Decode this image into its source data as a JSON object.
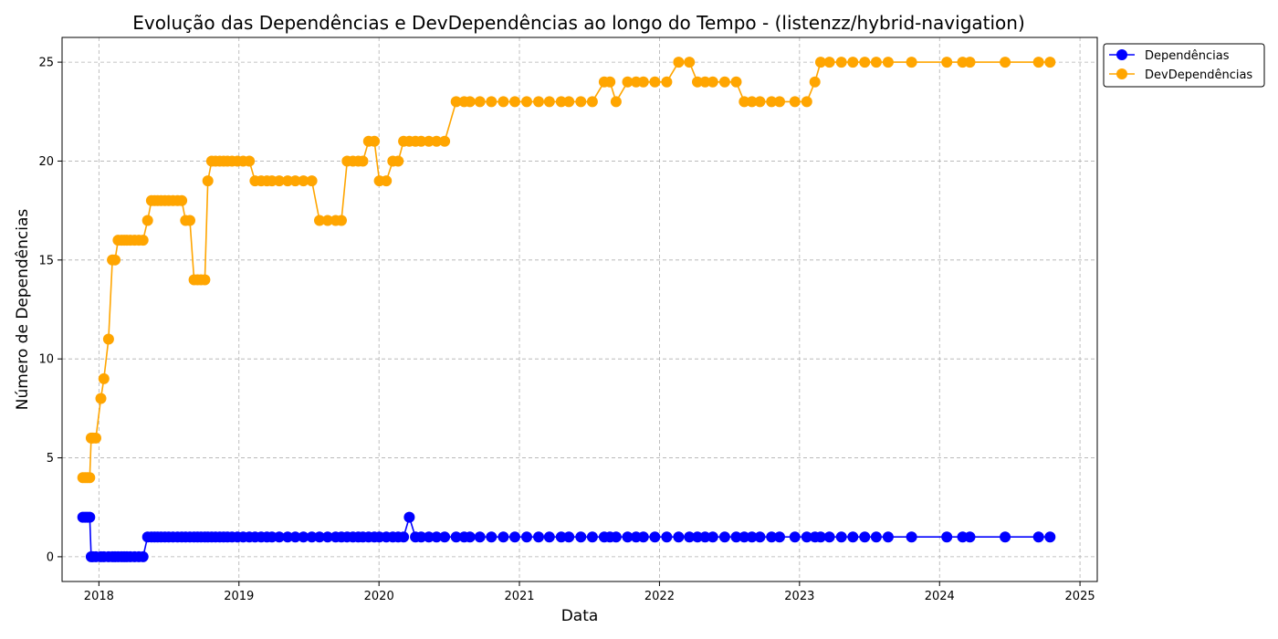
{
  "chart_data": {
    "type": "line",
    "title": "Evolução das Dependências e DevDependências ao longo do Tempo - (listenzz/hybrid-navigation)",
    "xlabel": "Data",
    "ylabel": "Número de Dependências",
    "xlim": [
      "2017-09-27",
      "2025-02-15"
    ],
    "ylim": [
      -1.25,
      26.25
    ],
    "x_ticks": [
      "2018",
      "2019",
      "2020",
      "2021",
      "2022",
      "2023",
      "2024",
      "2025"
    ],
    "y_ticks": [
      0,
      5,
      10,
      15,
      20,
      25
    ],
    "grid": true,
    "legend_position": "outside-top-right",
    "x": [
      "2017-11-20",
      "2017-11-26",
      "2017-12-02",
      "2017-12-08",
      "2017-12-12",
      "2017-12-16",
      "2017-12-24",
      "2018-01-06",
      "2018-01-14",
      "2018-01-26",
      "2018-02-05",
      "2018-02-12",
      "2018-02-20",
      "2018-03-01",
      "2018-03-08",
      "2018-03-15",
      "2018-03-24",
      "2018-04-04",
      "2018-04-15",
      "2018-04-26",
      "2018-05-08",
      "2018-05-18",
      "2018-05-26",
      "2018-06-03",
      "2018-06-12",
      "2018-06-22",
      "2018-07-02",
      "2018-07-13",
      "2018-07-25",
      "2018-08-05",
      "2018-08-15",
      "2018-08-26",
      "2018-09-06",
      "2018-09-15",
      "2018-09-24",
      "2018-10-04",
      "2018-10-12",
      "2018-10-22",
      "2018-11-01",
      "2018-11-12",
      "2018-11-22",
      "2018-12-02",
      "2018-12-14",
      "2018-12-28",
      "2019-01-12",
      "2019-01-28",
      "2019-02-12",
      "2019-02-28",
      "2019-03-15",
      "2019-03-28",
      "2019-04-16",
      "2019-05-08",
      "2019-05-28",
      "2019-06-18",
      "2019-07-10",
      "2019-07-30",
      "2019-08-20",
      "2019-09-10",
      "2019-09-25",
      "2019-10-10",
      "2019-10-25",
      "2019-11-08",
      "2019-11-20",
      "2019-12-05",
      "2019-12-20",
      "2020-01-02",
      "2020-01-20",
      "2020-02-06",
      "2020-02-20",
      "2020-03-05",
      "2020-03-20",
      "2020-04-05",
      "2020-04-20",
      "2020-05-10",
      "2020-05-30",
      "2020-06-20",
      "2020-07-20",
      "2020-08-10",
      "2020-08-25",
      "2020-09-20",
      "2020-10-20",
      "2020-11-20",
      "2020-12-20",
      "2021-01-20",
      "2021-02-20",
      "2021-03-20",
      "2021-04-20",
      "2021-05-10",
      "2021-06-10",
      "2021-07-10",
      "2021-08-10",
      "2021-08-25",
      "2021-09-10",
      "2021-10-10",
      "2021-11-01",
      "2021-11-20",
      "2021-12-20",
      "2022-01-20",
      "2022-02-20",
      "2022-03-20",
      "2022-04-10",
      "2022-04-30",
      "2022-05-20",
      "2022-06-20",
      "2022-07-20",
      "2022-08-10",
      "2022-08-30",
      "2022-09-20",
      "2022-10-20",
      "2022-11-10",
      "2022-12-20",
      "2023-01-20",
      "2023-02-10",
      "2023-02-25",
      "2023-03-20",
      "2023-04-20",
      "2023-05-20",
      "2023-06-20",
      "2023-07-20",
      "2023-08-20",
      "2023-10-20",
      "2024-01-20",
      "2024-03-01",
      "2024-03-20",
      "2024-06-20",
      "2024-09-15",
      "2024-10-15"
    ],
    "series": [
      {
        "name": "Dependências",
        "color": "#0000ff",
        "values": [
          2,
          2,
          2,
          2,
          0,
          0,
          0,
          0,
          0,
          0,
          0,
          0,
          0,
          0,
          0,
          0,
          0,
          0,
          0,
          0,
          1,
          1,
          1,
          1,
          1,
          1,
          1,
          1,
          1,
          1,
          1,
          1,
          1,
          1,
          1,
          1,
          1,
          1,
          1,
          1,
          1,
          1,
          1,
          1,
          1,
          1,
          1,
          1,
          1,
          1,
          1,
          1,
          1,
          1,
          1,
          1,
          1,
          1,
          1,
          1,
          1,
          1,
          1,
          1,
          1,
          1,
          1,
          1,
          1,
          1,
          2,
          1,
          1,
          1,
          1,
          1,
          1,
          1,
          1,
          1,
          1,
          1,
          1,
          1,
          1,
          1,
          1,
          1,
          1,
          1,
          1,
          1,
          1,
          1,
          1,
          1,
          1,
          1,
          1,
          1,
          1,
          1,
          1,
          1,
          1,
          1,
          1,
          1,
          1,
          1,
          1,
          1,
          1,
          1,
          1,
          1,
          1,
          1,
          1,
          1,
          1,
          1,
          1,
          1,
          1,
          1,
          1
        ]
      },
      {
        "name": "DevDependências",
        "color": "#ffa500",
        "values": [
          4,
          4,
          4,
          4,
          6,
          6,
          6,
          8,
          9,
          11,
          15,
          15,
          16,
          16,
          16,
          16,
          16,
          16,
          16,
          16,
          17,
          18,
          18,
          18,
          18,
          18,
          18,
          18,
          18,
          18,
          17,
          17,
          14,
          14,
          14,
          14,
          19,
          20,
          20,
          20,
          20,
          20,
          20,
          20,
          20,
          20,
          19,
          19,
          19,
          19,
          19,
          19,
          19,
          19,
          19,
          17,
          17,
          17,
          17,
          20,
          20,
          20,
          20,
          21,
          21,
          19,
          19,
          20,
          20,
          21,
          21,
          21,
          21,
          21,
          21,
          21,
          23,
          23,
          23,
          23,
          23,
          23,
          23,
          23,
          23,
          23,
          23,
          23,
          23,
          23,
          24,
          24,
          23,
          24,
          24,
          24,
          24,
          24,
          25,
          25,
          24,
          24,
          24,
          24,
          24,
          23,
          23,
          23,
          23,
          23,
          23,
          23,
          24,
          25,
          25,
          25,
          25,
          25,
          25,
          25,
          25,
          25,
          25,
          25,
          25,
          25,
          25
        ]
      }
    ]
  }
}
